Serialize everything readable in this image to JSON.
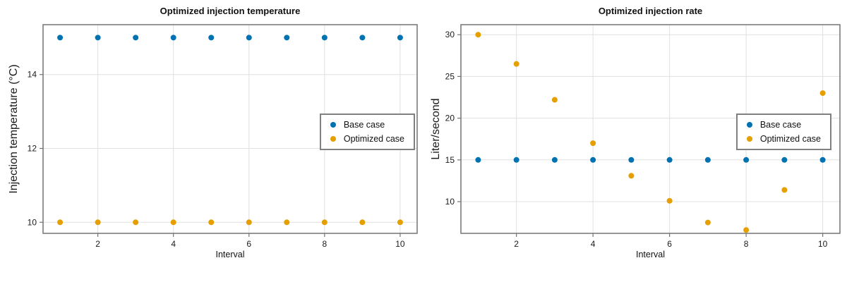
{
  "figure": {
    "background": "#ffffff"
  },
  "palette": {
    "base_case": "#0072b2",
    "optimized_case": "#e69f00",
    "frame": "#737373",
    "grid": "#e0e0e0",
    "legend_border": "#808080",
    "text": "#1a1a1a"
  },
  "chart_data": [
    {
      "type": "scatter",
      "title": "Optimized injection temperature",
      "xlabel": "Interval",
      "ylabel": "Injection temperature (°C)",
      "x": [
        1,
        2,
        3,
        4,
        5,
        6,
        7,
        8,
        9,
        10
      ],
      "series": [
        {
          "name": "Base case",
          "color": "#0072b2",
          "values": [
            15,
            15,
            15,
            15,
            15,
            15,
            15,
            15,
            15,
            15
          ]
        },
        {
          "name": "Optimized case",
          "color": "#e69f00",
          "values": [
            10,
            10,
            10,
            10,
            10,
            10,
            10,
            10,
            10,
            10
          ]
        }
      ],
      "xlim": [
        0.55,
        10.45
      ],
      "ylim": [
        9.7,
        15.35
      ],
      "xticks": [
        2,
        4,
        6,
        8,
        10
      ],
      "yticks": [
        10,
        12,
        14
      ],
      "grid": true,
      "legend_position": "center right"
    },
    {
      "type": "scatter",
      "title": "Optimized injection rate",
      "xlabel": "Interval",
      "ylabel": "Liter/second",
      "x": [
        1,
        2,
        3,
        4,
        5,
        6,
        7,
        8,
        9,
        10
      ],
      "series": [
        {
          "name": "Base case",
          "color": "#0072b2",
          "values": [
            15,
            15,
            15,
            15,
            15,
            15,
            15,
            15,
            15,
            15
          ]
        },
        {
          "name": "Optimized case",
          "color": "#e69f00",
          "values": [
            30.0,
            26.5,
            22.2,
            17.0,
            13.1,
            10.1,
            7.5,
            6.6,
            11.4,
            23.0
          ]
        }
      ],
      "xlim": [
        0.55,
        10.45
      ],
      "ylim": [
        6.2,
        31.2
      ],
      "xticks": [
        2,
        4,
        6,
        8,
        10
      ],
      "yticks": [
        10,
        15,
        20,
        25,
        30
      ],
      "grid": true,
      "legend_position": "center right"
    }
  ]
}
